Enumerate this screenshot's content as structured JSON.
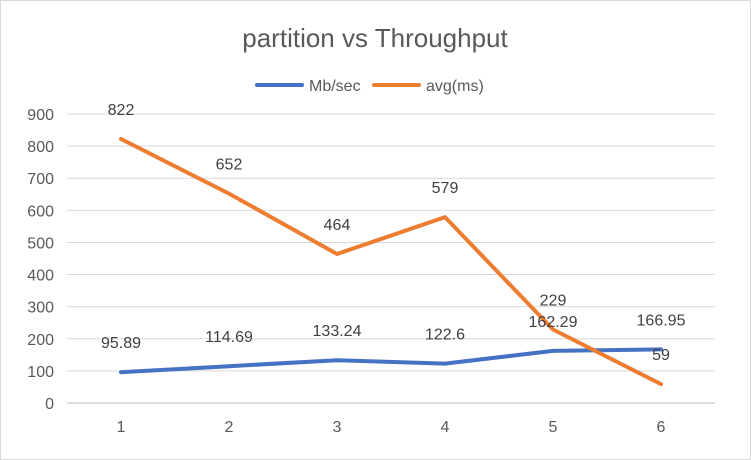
{
  "chart_data": {
    "type": "line",
    "title": "partition vs Throughput",
    "xlabel": "",
    "ylabel": "",
    "categories": [
      "1",
      "2",
      "3",
      "4",
      "5",
      "6"
    ],
    "ylim": [
      0,
      900
    ],
    "yticks": [
      0,
      100,
      200,
      300,
      400,
      500,
      600,
      700,
      800,
      900
    ],
    "grid": true,
    "legend_position": "top",
    "series": [
      {
        "name": "Mb/sec",
        "color": "#4472c4",
        "values": [
          95.89,
          114.69,
          133.24,
          122.6,
          162.29,
          166.95
        ],
        "labels": [
          "95.89",
          "114.69",
          "133.24",
          "122.6",
          "162.29",
          "166.95"
        ]
      },
      {
        "name": "avg(ms)",
        "color": "#ed7d31",
        "values": [
          822,
          652,
          464,
          579,
          229,
          59
        ],
        "labels": [
          "822",
          "652",
          "464",
          "579",
          "229",
          "59"
        ]
      }
    ]
  }
}
